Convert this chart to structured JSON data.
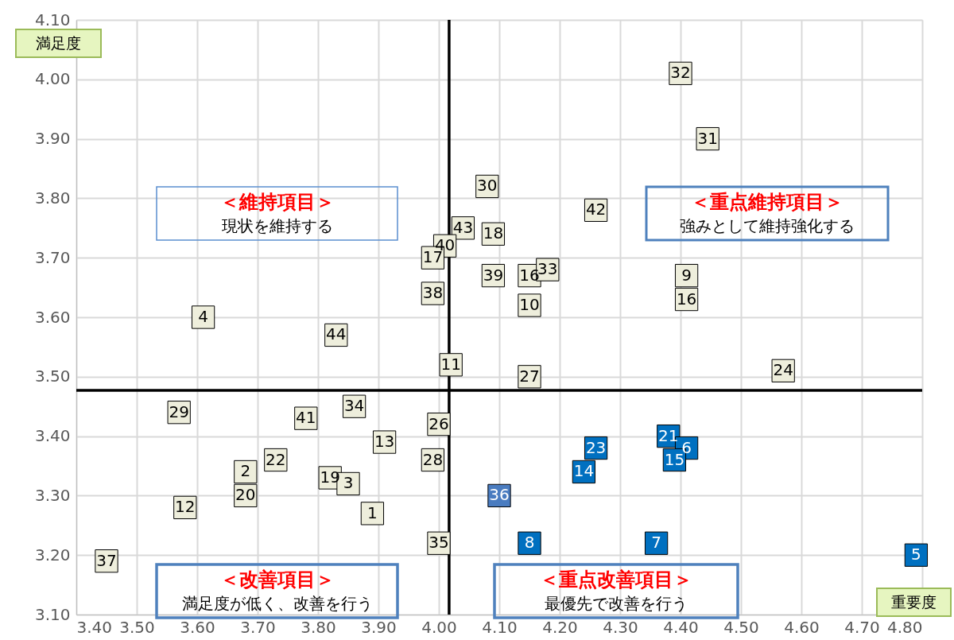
{
  "chart_data": {
    "type": "scatter",
    "xlabel": "重要度",
    "ylabel": "満足度",
    "xlim": [
      3.4,
      4.8
    ],
    "ylim": [
      3.1,
      4.1
    ],
    "xticks": [
      {
        "value": 3.4,
        "label": "3.40"
      },
      {
        "value": 3.5,
        "label": "3.50"
      },
      {
        "value": 3.6,
        "label": "3.60"
      },
      {
        "value": 3.7,
        "label": "3.70"
      },
      {
        "value": 3.8,
        "label": "3.80"
      },
      {
        "value": 3.9,
        "label": "3.90"
      },
      {
        "value": 4.0,
        "label": "4.00"
      },
      {
        "value": 4.1,
        "label": "4.10"
      },
      {
        "value": 4.2,
        "label": "4.20"
      },
      {
        "value": 4.3,
        "label": "4.30"
      },
      {
        "value": 4.4,
        "label": "4.40"
      },
      {
        "value": 4.5,
        "label": "4.50"
      },
      {
        "value": 4.6,
        "label": "4.60"
      },
      {
        "value": 4.7,
        "label": "4.70"
      },
      {
        "value": 4.8,
        "label": "4.80"
      }
    ],
    "yticks": [
      {
        "value": 3.1,
        "label": "3.10"
      },
      {
        "value": 3.2,
        "label": "3.20"
      },
      {
        "value": 3.3,
        "label": "3.30"
      },
      {
        "value": 3.4,
        "label": "3.40"
      },
      {
        "value": 3.5,
        "label": "3.50"
      },
      {
        "value": 3.6,
        "label": "3.60"
      },
      {
        "value": 3.7,
        "label": "3.70"
      },
      {
        "value": 3.8,
        "label": "3.80"
      },
      {
        "value": 3.9,
        "label": "3.90"
      },
      {
        "value": 4.0,
        "label": "4.00"
      },
      {
        "value": 4.1,
        "label": "4.10"
      }
    ],
    "grid": true,
    "legend": false,
    "marker": "square",
    "series": [
      {
        "color": "#eeeedc",
        "x": [
          4.4,
          4.445,
          4.08,
          4.26,
          4.04,
          4.09,
          4.01,
          3.99,
          4.09,
          4.15,
          4.18,
          4.41,
          4.41,
          4.15,
          3.99,
          3.61,
          3.83,
          4.02,
          4.15,
          4.57,
          3.57,
          3.78,
          3.86,
          4.0,
          3.91,
          3.73,
          3.99,
          3.68,
          3.82,
          3.85,
          3.68,
          3.58,
          3.89,
          4.0,
          3.45
        ],
        "values": [
          4.01,
          3.9,
          3.82,
          3.78,
          3.75,
          3.74,
          3.72,
          3.7,
          3.67,
          3.67,
          3.68,
          3.67,
          3.63,
          3.62,
          3.64,
          3.6,
          3.57,
          3.52,
          3.5,
          3.51,
          3.44,
          3.43,
          3.45,
          3.42,
          3.39,
          3.36,
          3.36,
          3.34,
          3.33,
          3.32,
          3.3,
          3.28,
          3.27,
          3.22,
          3.19
        ]
      },
      {
        "color": "#0070c0",
        "colors": [
          "#0070c0",
          "#0070c0",
          "#0070c0",
          "#0070c0",
          "#0070c0",
          "#4a7cc0",
          "#0070c0",
          "#0070c0",
          "#0070c0"
        ],
        "x": [
          4.26,
          4.38,
          4.41,
          4.39,
          4.24,
          4.1,
          4.15,
          4.36,
          4.79
        ],
        "values": [
          3.38,
          3.4,
          3.38,
          3.36,
          3.34,
          3.3,
          3.22,
          3.22,
          3.2
        ]
      }
    ],
    "ref_lines": [
      {
        "axis": "x",
        "value": 4.017,
        "color": "#000000"
      },
      {
        "axis": "y",
        "value": 3.477,
        "color": "#000000"
      }
    ],
    "annotations": [
      "＜維持項目＞",
      "現状を維持する",
      "＜重点維持項目＞",
      "強みとして維持強化する",
      "＜改善項目＞",
      "満足度が低く、改善を行う",
      "＜重点改善項目＞",
      "最優先で改善を行う",
      {
        "text": "32",
        "x": 4.4,
        "y": 4.01
      },
      {
        "text": "31",
        "x": 4.445,
        "y": 3.9
      },
      {
        "text": "30",
        "x": 4.08,
        "y": 3.82
      },
      {
        "text": "42",
        "x": 4.26,
        "y": 3.78
      },
      {
        "text": "43",
        "x": 4.04,
        "y": 3.75
      },
      {
        "text": "18",
        "x": 4.09,
        "y": 3.74
      },
      {
        "text": "40",
        "x": 4.01,
        "y": 3.72
      },
      {
        "text": "17",
        "x": 3.99,
        "y": 3.7
      },
      {
        "text": "39",
        "x": 4.09,
        "y": 3.67
      },
      {
        "text": "16",
        "x": 4.15,
        "y": 3.67
      },
      {
        "text": "33",
        "x": 4.18,
        "y": 3.68
      },
      {
        "text": "9",
        "x": 4.41,
        "y": 3.67
      },
      {
        "text": "16",
        "x": 4.41,
        "y": 3.63
      },
      {
        "text": "10",
        "x": 4.15,
        "y": 3.62
      },
      {
        "text": "38",
        "x": 3.99,
        "y": 3.64
      },
      {
        "text": "4",
        "x": 3.61,
        "y": 3.6
      },
      {
        "text": "44",
        "x": 3.83,
        "y": 3.57
      },
      {
        "text": "11",
        "x": 4.02,
        "y": 3.52
      },
      {
        "text": "27",
        "x": 4.15,
        "y": 3.5
      },
      {
        "text": "24",
        "x": 4.57,
        "y": 3.51
      },
      {
        "text": "29",
        "x": 3.57,
        "y": 3.44
      },
      {
        "text": "41",
        "x": 3.78,
        "y": 3.43
      },
      {
        "text": "34",
        "x": 3.86,
        "y": 3.45
      },
      {
        "text": "26",
        "x": 4.0,
        "y": 3.42
      },
      {
        "text": "13",
        "x": 3.91,
        "y": 3.39
      },
      {
        "text": "22",
        "x": 3.73,
        "y": 3.36
      },
      {
        "text": "28",
        "x": 3.99,
        "y": 3.36
      },
      {
        "text": "2",
        "x": 3.68,
        "y": 3.34
      },
      {
        "text": "19",
        "x": 3.82,
        "y": 3.33
      },
      {
        "text": "3",
        "x": 3.85,
        "y": 3.32
      },
      {
        "text": "20",
        "x": 3.68,
        "y": 3.3
      },
      {
        "text": "12",
        "x": 3.58,
        "y": 3.28
      },
      {
        "text": "1",
        "x": 3.89,
        "y": 3.27
      },
      {
        "text": "35",
        "x": 4.0,
        "y": 3.22
      },
      {
        "text": "37",
        "x": 3.45,
        "y": 3.19
      },
      {
        "text": "23",
        "x": 4.26,
        "y": 3.38
      },
      {
        "text": "21",
        "x": 4.38,
        "y": 3.4
      },
      {
        "text": "6",
        "x": 4.41,
        "y": 3.38
      },
      {
        "text": "15",
        "x": 4.39,
        "y": 3.36
      },
      {
        "text": "14",
        "x": 4.24,
        "y": 3.34
      },
      {
        "text": "36",
        "x": 4.1,
        "y": 3.3
      },
      {
        "text": "8",
        "x": 4.15,
        "y": 3.22
      },
      {
        "text": "7",
        "x": 4.36,
        "y": 3.22
      },
      {
        "text": "5",
        "x": 4.79,
        "y": 3.2
      }
    ]
  }
}
